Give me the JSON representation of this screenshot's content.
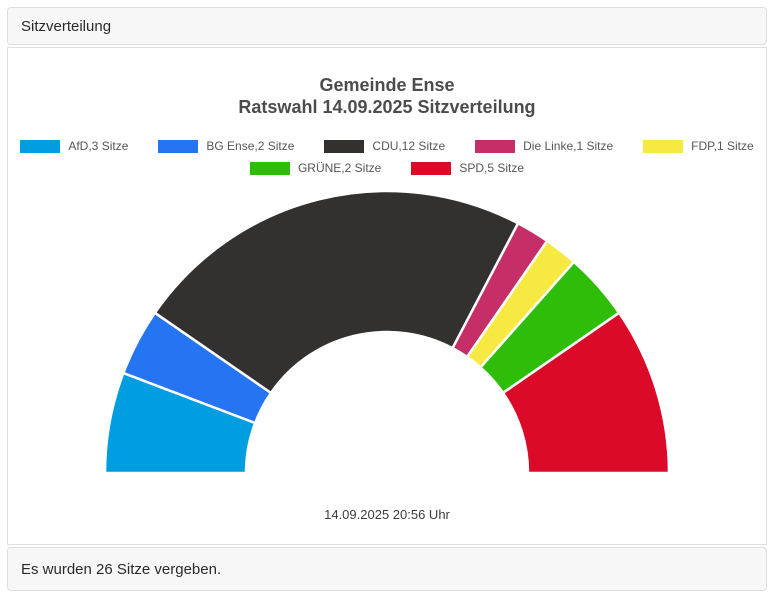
{
  "panel": {
    "header_title": "Sitzverteilung",
    "footer_text": "Es wurden 26 Sitze vergeben."
  },
  "chart_data": {
    "type": "pie",
    "subtype": "half-donut",
    "title": "Gemeinde Ense",
    "subtitle": "Ratswahl 14.09.2025 Sitzverteilung",
    "timestamp_label": "14.09.2025 20:56 Uhr",
    "total_seats": 26,
    "start_angle_deg": -90,
    "end_angle_deg": 90,
    "inner_radius_ratio": 0.5,
    "legend_position": "top",
    "legend_row_counts": [
      5,
      2
    ],
    "series": [
      {
        "name": "AfD",
        "seats": 3,
        "legend_label": "AfD,3 Sitze",
        "color": "#009ee0"
      },
      {
        "name": "BG Ense",
        "seats": 2,
        "legend_label": "BG Ense,2 Sitze",
        "color": "#2575f2"
      },
      {
        "name": "CDU",
        "seats": 12,
        "legend_label": "CDU,12 Sitze",
        "color": "#323130"
      },
      {
        "name": "Die Linke",
        "seats": 1,
        "legend_label": "Die Linke,1 Sitze",
        "color": "#c62e68"
      },
      {
        "name": "FDP",
        "seats": 1,
        "legend_label": "FDP,1 Sitze",
        "color": "#f6e942"
      },
      {
        "name": "GRÜNE",
        "seats": 2,
        "legend_label": "GRÜNE,2 Sitze",
        "color": "#2ebe0a"
      },
      {
        "name": "SPD",
        "seats": 5,
        "legend_label": "SPD,5 Sitze",
        "color": "#da0a28"
      }
    ]
  }
}
